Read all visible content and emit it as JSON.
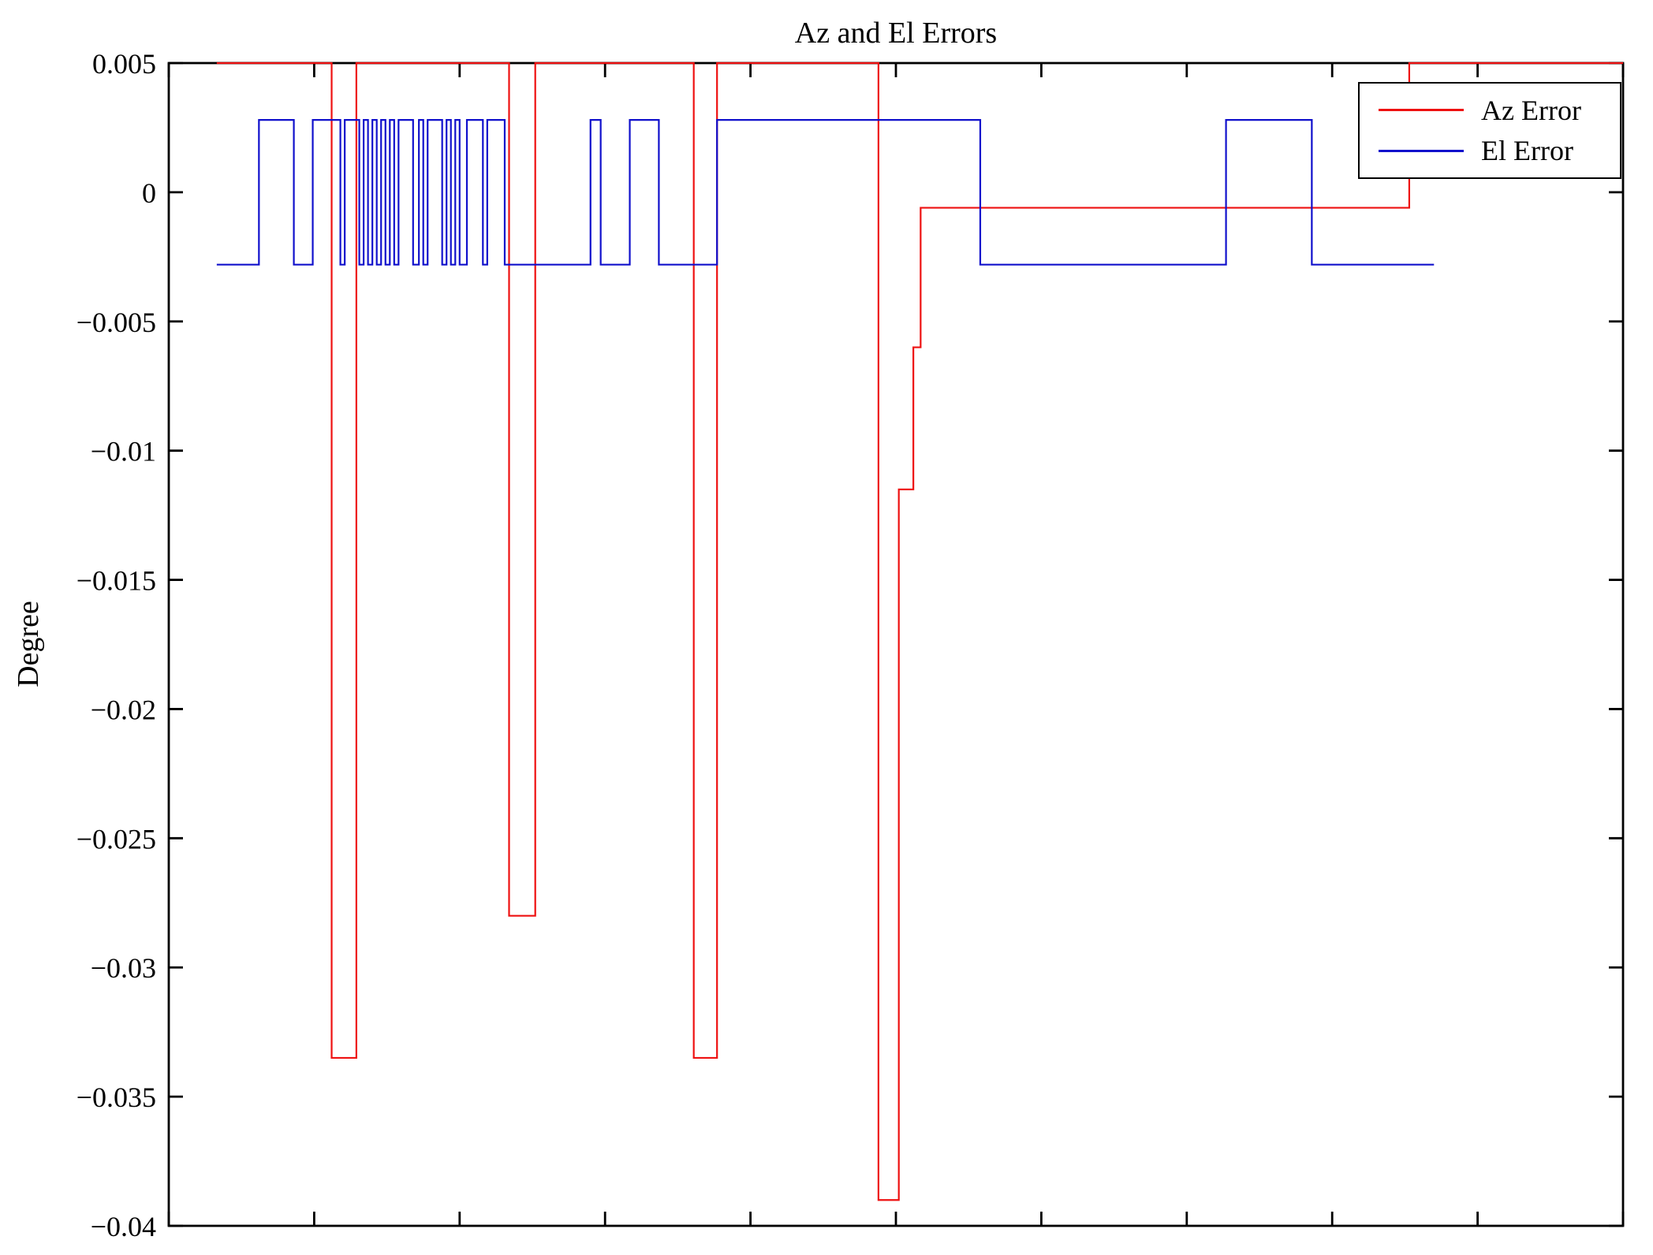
{
  "chart_data": {
    "type": "line",
    "title": "Az and El Errors",
    "xlabel": "",
    "ylabel": "Degree",
    "ylim": [
      -0.04,
      0.005
    ],
    "xlim": [
      0,
      1
    ],
    "grid": false,
    "yticks": [
      0.005,
      0,
      -0.005,
      -0.01,
      -0.015,
      -0.02,
      -0.025,
      -0.03,
      -0.035,
      -0.04
    ],
    "ytick_labels": [
      "0.005",
      "0",
      "−0.005",
      "−0.01",
      "−0.015",
      "−0.02",
      "−0.025",
      "−0.03",
      "−0.035",
      "−0.04"
    ],
    "xticks": [
      0,
      0.1,
      0.2,
      0.3,
      0.4,
      0.5,
      0.6,
      0.7,
      0.8,
      0.9,
      1
    ],
    "xtick_labels": [],
    "frame_color": "#000000",
    "background_color": "#ffffff",
    "legend": {
      "position": "top-right",
      "entries": [
        {
          "label": "Az Error",
          "color": "#ee1111"
        },
        {
          "label": "El Error",
          "color": "#1111cc"
        }
      ]
    },
    "series": [
      {
        "name": "Az Error",
        "color": "#ee1111",
        "style": "step",
        "x_end": 1.0,
        "points": [
          [
            0.033,
            0.005
          ],
          [
            0.112,
            -0.0335
          ],
          [
            0.129,
            0.005
          ],
          [
            0.234,
            -0.028
          ],
          [
            0.252,
            0.005
          ],
          [
            0.361,
            -0.0335
          ],
          [
            0.377,
            0.005
          ],
          [
            0.488,
            -0.039
          ],
          [
            0.502,
            -0.0115
          ],
          [
            0.512,
            -0.006
          ],
          [
            0.517,
            -0.0006
          ],
          [
            0.853,
            0.005
          ]
        ]
      },
      {
        "name": "El Error",
        "color": "#1111cc",
        "style": "step",
        "x_end": 0.87,
        "points": [
          [
            0.033,
            -0.0028
          ],
          [
            0.062,
            0.0028
          ],
          [
            0.086,
            -0.0028
          ],
          [
            0.099,
            0.0028
          ],
          [
            0.118,
            -0.0028
          ],
          [
            0.121,
            0.0028
          ],
          [
            0.131,
            -0.0028
          ],
          [
            0.134,
            0.0028
          ],
          [
            0.137,
            -0.0028
          ],
          [
            0.14,
            0.0028
          ],
          [
            0.143,
            -0.0028
          ],
          [
            0.146,
            0.0028
          ],
          [
            0.149,
            -0.0028
          ],
          [
            0.152,
            0.0028
          ],
          [
            0.155,
            -0.0028
          ],
          [
            0.158,
            0.0028
          ],
          [
            0.168,
            -0.0028
          ],
          [
            0.172,
            0.0028
          ],
          [
            0.175,
            -0.0028
          ],
          [
            0.178,
            0.0028
          ],
          [
            0.188,
            -0.0028
          ],
          [
            0.191,
            0.0028
          ],
          [
            0.194,
            -0.0028
          ],
          [
            0.197,
            0.0028
          ],
          [
            0.2,
            -0.0028
          ],
          [
            0.205,
            0.0028
          ],
          [
            0.216,
            -0.0028
          ],
          [
            0.219,
            0.0028
          ],
          [
            0.231,
            -0.0028
          ],
          [
            0.29,
            0.0028
          ],
          [
            0.297,
            -0.0028
          ],
          [
            0.317,
            0.0028
          ],
          [
            0.337,
            -0.0028
          ],
          [
            0.377,
            0.0028
          ],
          [
            0.558,
            -0.0028
          ],
          [
            0.727,
            0.0028
          ],
          [
            0.786,
            -0.0028
          ]
        ]
      }
    ]
  }
}
